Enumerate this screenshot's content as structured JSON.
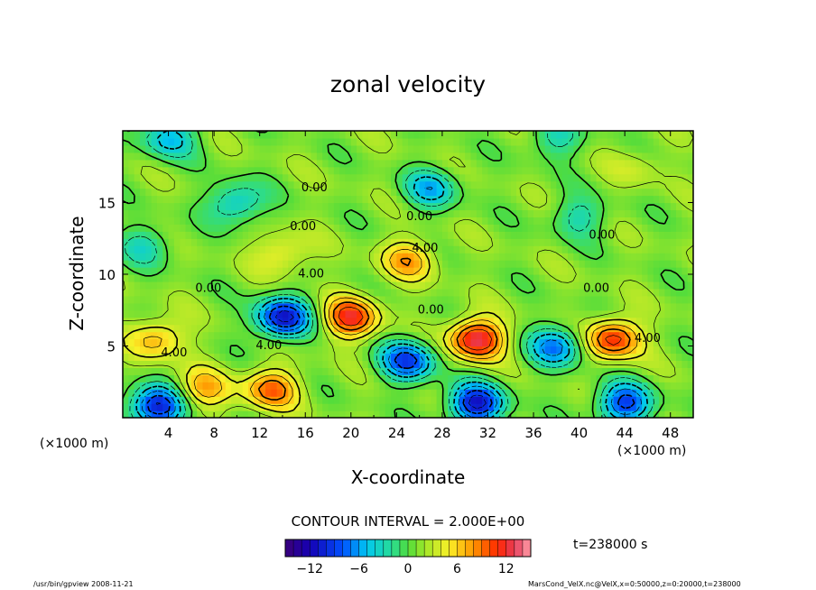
{
  "chart_data": {
    "type": "heatmap",
    "title": "zonal velocity",
    "xlabel": "X-coordinate",
    "ylabel": "Z-coordinate",
    "x_units": "(×1000 m)",
    "y_units": "(×1000 m)",
    "xlim": [
      0,
      50
    ],
    "ylim": [
      0,
      20
    ],
    "x_ticks": [
      4,
      8,
      12,
      16,
      20,
      24,
      28,
      32,
      36,
      40,
      44,
      48
    ],
    "y_ticks": [
      5,
      10,
      15
    ],
    "contour_interval_text": "CONTOUR INTERVAL = 2.000E+00",
    "time_text": "t=238000 s",
    "contour_labels": [
      {
        "x": 16.8,
        "z": 16.0,
        "text": "0.00"
      },
      {
        "x": 26.0,
        "z": 14.0,
        "text": "0.00"
      },
      {
        "x": 15.8,
        "z": 13.3,
        "text": "0.00"
      },
      {
        "x": 26.5,
        "z": 11.8,
        "text": "4.00"
      },
      {
        "x": 42.0,
        "z": 12.7,
        "text": "0.00"
      },
      {
        "x": 16.5,
        "z": 10.0,
        "text": "4.00"
      },
      {
        "x": 7.5,
        "z": 9.0,
        "text": "0.00"
      },
      {
        "x": 41.5,
        "z": 9.0,
        "text": "0.00"
      },
      {
        "x": 27.0,
        "z": 7.5,
        "text": "0.00"
      },
      {
        "x": 12.8,
        "z": 5.0,
        "text": "4.00"
      },
      {
        "x": 4.5,
        "z": 4.5,
        "text": "4.00"
      },
      {
        "x": 46.0,
        "z": 5.5,
        "text": "4.00"
      }
    ],
    "colorbar": {
      "min": -15,
      "max": 15,
      "ticks": [
        -12,
        -6,
        0,
        6,
        12
      ],
      "tick_labels": [
        "−12",
        "−6",
        "0",
        "6",
        "12"
      ]
    },
    "field_features": [
      {
        "x": 14,
        "z": 7,
        "value": -12
      },
      {
        "x": 25,
        "z": 4,
        "value": -10
      },
      {
        "x": 31,
        "z": 1,
        "value": -12
      },
      {
        "x": 3,
        "z": 0.8,
        "value": -12
      },
      {
        "x": 44,
        "z": 1,
        "value": -10
      },
      {
        "x": 38,
        "z": 5,
        "value": -8
      },
      {
        "x": 31,
        "z": 5.5,
        "value": 12
      },
      {
        "x": 43,
        "z": 5.5,
        "value": 10
      },
      {
        "x": 20,
        "z": 7,
        "value": 10
      },
      {
        "x": 13,
        "z": 2,
        "value": 8
      },
      {
        "x": 3,
        "z": 5.5,
        "value": 6
      },
      {
        "x": 7,
        "z": 2,
        "value": 6
      },
      {
        "x": 25,
        "z": 11,
        "value": 6
      },
      {
        "x": 14,
        "z": 11.5,
        "value": 4
      },
      {
        "x": 45,
        "z": 17.5,
        "value": 2
      },
      {
        "x": 10,
        "z": 15,
        "value": -6
      },
      {
        "x": 27,
        "z": 16,
        "value": -6
      },
      {
        "x": 2,
        "z": 12,
        "value": -4
      },
      {
        "x": 40,
        "z": 14,
        "value": -4
      },
      {
        "x": 4,
        "z": 19.5,
        "value": -6
      },
      {
        "x": 38,
        "z": 19.5,
        "value": -4
      }
    ]
  },
  "footer": {
    "left": "/usr/bin/gpview   2008-11-21",
    "right": "MarsCond_VelX.nc@VelX,x=0:50000,z=0:20000,t=238000"
  }
}
